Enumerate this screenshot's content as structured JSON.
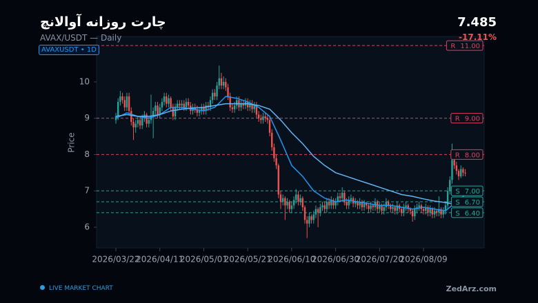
{
  "header": {
    "title": "چارت روزانه آوالانچ",
    "subtitle": "AVAX/USDT — Daily",
    "badge": "AVAXUSDT  •  1D",
    "price": "7.485",
    "change": "-17.11%"
  },
  "footer": {
    "live": "LIVE MARKET CHART",
    "brand": "ZedArz.com"
  },
  "chart_data": {
    "type": "candlestick",
    "y_label": "Price",
    "ylim": [
      5.43,
      11.25
    ],
    "yticks": [
      6,
      7,
      8,
      9,
      10
    ],
    "up_color": "#26a69a",
    "down_color": "#ef5350",
    "xticks": [
      "2026/03/22",
      "2026/04/11",
      "2026/05/01",
      "2026/05/21",
      "2026/06/10",
      "2026/06/30",
      "2026/07/20",
      "2026/08/09"
    ],
    "x": [
      "2026/03/22",
      "2026/03/23",
      "2026/03/24",
      "2026/03/25",
      "2026/03/26",
      "2026/03/27",
      "2026/03/28",
      "2026/03/29",
      "2026/03/30",
      "2026/03/31",
      "2026/04/01",
      "2026/04/02",
      "2026/04/03",
      "2026/04/04",
      "2026/04/05",
      "2026/04/06",
      "2026/04/07",
      "2026/04/08",
      "2026/04/09",
      "2026/04/10",
      "2026/04/11",
      "2026/04/12",
      "2026/04/13",
      "2026/04/14",
      "2026/04/15",
      "2026/04/16",
      "2026/04/17",
      "2026/04/18",
      "2026/04/19",
      "2026/04/20",
      "2026/04/21",
      "2026/04/22",
      "2026/04/23",
      "2026/04/24",
      "2026/04/25",
      "2026/04/26",
      "2026/04/27",
      "2026/04/28",
      "2026/04/29",
      "2026/04/30",
      "2026/05/01",
      "2026/05/02",
      "2026/05/03",
      "2026/05/04",
      "2026/05/05",
      "2026/05/06",
      "2026/05/07",
      "2026/05/08",
      "2026/05/09",
      "2026/05/10",
      "2026/05/11",
      "2026/05/12",
      "2026/05/13",
      "2026/05/14",
      "2026/05/15",
      "2026/05/16",
      "2026/05/17",
      "2026/05/18",
      "2026/05/19",
      "2026/05/20",
      "2026/05/21",
      "2026/05/22",
      "2026/05/23",
      "2026/05/24",
      "2026/05/25",
      "2026/05/26",
      "2026/05/27",
      "2026/05/28",
      "2026/05/29",
      "2026/05/30",
      "2026/05/31",
      "2026/06/01",
      "2026/06/02",
      "2026/06/03",
      "2026/06/04",
      "2026/06/05",
      "2026/06/06",
      "2026/06/07",
      "2026/06/08",
      "2026/06/09",
      "2026/06/10",
      "2026/06/11",
      "2026/06/12",
      "2026/06/13",
      "2026/06/14",
      "2026/06/15",
      "2026/06/16",
      "2026/06/17",
      "2026/06/18",
      "2026/06/19",
      "2026/06/20",
      "2026/06/21",
      "2026/06/22",
      "2026/06/23",
      "2026/06/24",
      "2026/06/25",
      "2026/06/26",
      "2026/06/27",
      "2026/06/28",
      "2026/06/29",
      "2026/06/30",
      "2026/07/01",
      "2026/07/02",
      "2026/07/03",
      "2026/07/04",
      "2026/07/05",
      "2026/07/06",
      "2026/07/07",
      "2026/07/08",
      "2026/07/09",
      "2026/07/10",
      "2026/07/11",
      "2026/07/12",
      "2026/07/13",
      "2026/07/14",
      "2026/07/15",
      "2026/07/16",
      "2026/07/17",
      "2026/07/18",
      "2026/07/19",
      "2026/07/20",
      "2026/07/21",
      "2026/07/22",
      "2026/07/23",
      "2026/07/24",
      "2026/07/25",
      "2026/07/26",
      "2026/07/27",
      "2026/07/28",
      "2026/07/29",
      "2026/07/30",
      "2026/07/31",
      "2026/08/01",
      "2026/08/02",
      "2026/08/03",
      "2026/08/04",
      "2026/08/05",
      "2026/08/06",
      "2026/08/07",
      "2026/08/08",
      "2026/08/09",
      "2026/08/10",
      "2026/08/11",
      "2026/08/12",
      "2026/08/13",
      "2026/08/14",
      "2026/08/15",
      "2026/08/16",
      "2026/08/17",
      "2026/08/18",
      "2026/08/19",
      "2026/08/20",
      "2026/08/21",
      "2026/08/22",
      "2026/08/23",
      "2026/08/24",
      "2026/08/25",
      "2026/08/26",
      "2026/08/27",
      "2026/08/28"
    ],
    "ohlc": [
      [
        8.95,
        9.15,
        8.85,
        9.05
      ],
      [
        9.05,
        9.55,
        8.95,
        9.45
      ],
      [
        9.45,
        9.75,
        9.35,
        9.6
      ],
      [
        9.6,
        9.7,
        9.4,
        9.5
      ],
      [
        9.5,
        9.6,
        9.2,
        9.3
      ],
      [
        9.3,
        9.7,
        9.2,
        9.6
      ],
      [
        9.6,
        9.7,
        9.1,
        9.2
      ],
      [
        9.2,
        9.3,
        8.8,
        8.9
      ],
      [
        8.9,
        9.0,
        8.4,
        8.75
      ],
      [
        8.75,
        8.95,
        8.6,
        8.85
      ],
      [
        8.85,
        9.05,
        8.75,
        8.95
      ],
      [
        8.95,
        9.05,
        8.7,
        8.8
      ],
      [
        8.8,
        9.1,
        8.7,
        9.0
      ],
      [
        9.0,
        9.2,
        8.9,
        9.1
      ],
      [
        9.1,
        9.15,
        8.75,
        8.85
      ],
      [
        8.85,
        9.05,
        8.75,
        8.95
      ],
      [
        8.95,
        9.65,
        8.85,
        9.05
      ],
      [
        9.05,
        9.3,
        8.45,
        9.2
      ],
      [
        9.2,
        9.45,
        9.1,
        9.35
      ],
      [
        9.35,
        9.45,
        9.0,
        9.1
      ],
      [
        9.1,
        9.4,
        9.0,
        9.3
      ],
      [
        9.3,
        9.55,
        9.2,
        9.45
      ],
      [
        9.45,
        9.7,
        9.35,
        9.6
      ],
      [
        9.6,
        9.7,
        9.3,
        9.4
      ],
      [
        9.4,
        9.65,
        9.3,
        9.55
      ],
      [
        9.55,
        9.6,
        9.2,
        9.3
      ],
      [
        9.3,
        9.4,
        8.95,
        9.05
      ],
      [
        9.05,
        9.4,
        8.95,
        9.3
      ],
      [
        9.3,
        9.5,
        9.2,
        9.4
      ],
      [
        9.4,
        9.5,
        9.25,
        9.35
      ],
      [
        9.35,
        9.5,
        9.25,
        9.4
      ],
      [
        9.4,
        9.5,
        9.2,
        9.3
      ],
      [
        9.3,
        9.55,
        9.2,
        9.45
      ],
      [
        9.45,
        9.55,
        9.25,
        9.35
      ],
      [
        9.35,
        9.45,
        9.1,
        9.2
      ],
      [
        9.2,
        9.4,
        9.1,
        9.3
      ],
      [
        9.3,
        9.4,
        9.15,
        9.25
      ],
      [
        9.25,
        9.35,
        9.05,
        9.15
      ],
      [
        9.15,
        9.3,
        9.05,
        9.2
      ],
      [
        9.2,
        9.4,
        9.1,
        9.3
      ],
      [
        9.3,
        9.4,
        9.1,
        9.2
      ],
      [
        9.2,
        9.45,
        9.1,
        9.35
      ],
      [
        9.35,
        9.45,
        9.2,
        9.3
      ],
      [
        9.3,
        9.6,
        9.2,
        9.5
      ],
      [
        9.5,
        9.8,
        9.4,
        9.7
      ],
      [
        9.7,
        9.8,
        9.5,
        9.6
      ],
      [
        9.6,
        10.0,
        9.5,
        9.9
      ],
      [
        9.9,
        10.45,
        9.8,
        10.1
      ],
      [
        10.1,
        10.25,
        9.8,
        9.9
      ],
      [
        9.9,
        10.15,
        9.8,
        10.0
      ],
      [
        10.0,
        10.1,
        9.75,
        9.85
      ],
      [
        9.85,
        9.95,
        9.5,
        9.6
      ],
      [
        9.6,
        9.7,
        9.2,
        9.3
      ],
      [
        9.3,
        9.4,
        9.15,
        9.25
      ],
      [
        9.25,
        9.45,
        9.15,
        9.35
      ],
      [
        9.35,
        9.6,
        9.25,
        9.5
      ],
      [
        9.5,
        9.6,
        9.2,
        9.3
      ],
      [
        9.3,
        9.5,
        9.2,
        9.4
      ],
      [
        9.4,
        9.5,
        9.25,
        9.35
      ],
      [
        9.35,
        9.55,
        9.25,
        9.45
      ],
      [
        9.45,
        9.55,
        9.2,
        9.3
      ],
      [
        9.3,
        9.5,
        9.2,
        9.4
      ],
      [
        9.4,
        9.5,
        9.15,
        9.25
      ],
      [
        9.25,
        9.45,
        9.15,
        9.35
      ],
      [
        9.35,
        9.45,
        9.0,
        9.1
      ],
      [
        9.1,
        9.2,
        8.9,
        9.0
      ],
      [
        9.0,
        9.1,
        8.85,
        8.95
      ],
      [
        8.95,
        9.15,
        8.85,
        9.05
      ],
      [
        9.05,
        9.15,
        8.9,
        9.0
      ],
      [
        9.0,
        9.1,
        8.85,
        8.95
      ],
      [
        8.95,
        9.05,
        8.5,
        8.6
      ],
      [
        8.6,
        8.7,
        8.1,
        8.2
      ],
      [
        8.2,
        8.3,
        7.8,
        7.9
      ],
      [
        7.9,
        8.0,
        7.6,
        7.7
      ],
      [
        7.7,
        7.75,
        6.8,
        6.9
      ],
      [
        6.9,
        7.0,
        6.5,
        6.7
      ],
      [
        6.7,
        6.9,
        6.6,
        6.8
      ],
      [
        6.8,
        6.85,
        6.2,
        6.6
      ],
      [
        6.6,
        6.8,
        6.5,
        6.7
      ],
      [
        6.7,
        6.75,
        6.4,
        6.5
      ],
      [
        6.5,
        6.7,
        6.4,
        6.6
      ],
      [
        6.6,
        6.85,
        6.5,
        6.75
      ],
      [
        6.75,
        7.05,
        6.65,
        6.9
      ],
      [
        6.9,
        7.0,
        6.6,
        6.7
      ],
      [
        6.7,
        6.9,
        6.6,
        6.8
      ],
      [
        6.8,
        6.85,
        6.45,
        6.55
      ],
      [
        6.55,
        6.6,
        6.1,
        6.2
      ],
      [
        6.2,
        6.3,
        5.7,
        6.1
      ],
      [
        6.1,
        6.4,
        6.0,
        6.3
      ],
      [
        6.3,
        6.35,
        6.1,
        6.2
      ],
      [
        6.2,
        6.45,
        6.1,
        6.35
      ],
      [
        6.35,
        6.6,
        6.25,
        6.5
      ],
      [
        6.5,
        6.55,
        6.0,
        6.4
      ],
      [
        6.4,
        6.65,
        6.3,
        6.55
      ],
      [
        6.55,
        6.7,
        6.45,
        6.6
      ],
      [
        6.6,
        6.7,
        6.4,
        6.5
      ],
      [
        6.5,
        6.8,
        6.4,
        6.7
      ],
      [
        6.7,
        6.8,
        6.5,
        6.6
      ],
      [
        6.6,
        6.85,
        6.5,
        6.75
      ],
      [
        6.75,
        6.8,
        6.5,
        6.6
      ],
      [
        6.6,
        6.8,
        6.5,
        6.7
      ],
      [
        6.7,
        6.95,
        6.6,
        6.85
      ],
      [
        6.85,
        6.95,
        6.7,
        6.8
      ],
      [
        6.8,
        7.1,
        6.7,
        6.95
      ],
      [
        6.95,
        7.0,
        6.6,
        6.7
      ],
      [
        6.7,
        6.8,
        6.5,
        6.6
      ],
      [
        6.6,
        6.85,
        6.5,
        6.75
      ],
      [
        6.75,
        6.9,
        6.65,
        6.8
      ],
      [
        6.8,
        6.85,
        6.55,
        6.65
      ],
      [
        6.65,
        6.8,
        6.55,
        6.7
      ],
      [
        6.7,
        6.75,
        6.5,
        6.6
      ],
      [
        6.6,
        6.8,
        6.5,
        6.7
      ],
      [
        6.7,
        6.75,
        6.45,
        6.55
      ],
      [
        6.55,
        6.75,
        6.45,
        6.65
      ],
      [
        6.65,
        6.7,
        6.5,
        6.6
      ],
      [
        6.6,
        6.65,
        6.4,
        6.5
      ],
      [
        6.5,
        6.7,
        6.4,
        6.6
      ],
      [
        6.6,
        6.65,
        6.45,
        6.55
      ],
      [
        6.55,
        6.8,
        6.45,
        6.7
      ],
      [
        6.7,
        6.75,
        6.4,
        6.5
      ],
      [
        6.5,
        6.7,
        6.4,
        6.6
      ],
      [
        6.6,
        6.65,
        6.35,
        6.45
      ],
      [
        6.45,
        6.65,
        6.35,
        6.55
      ],
      [
        6.55,
        6.8,
        6.45,
        6.7
      ],
      [
        6.7,
        6.75,
        6.5,
        6.6
      ],
      [
        6.6,
        6.65,
        6.4,
        6.5
      ],
      [
        6.5,
        6.65,
        6.4,
        6.55
      ],
      [
        6.55,
        6.6,
        6.35,
        6.45
      ],
      [
        6.45,
        6.7,
        6.35,
        6.6
      ],
      [
        6.6,
        6.65,
        6.4,
        6.5
      ],
      [
        6.5,
        6.55,
        6.3,
        6.4
      ],
      [
        6.4,
        6.65,
        6.3,
        6.55
      ],
      [
        6.55,
        6.7,
        6.45,
        6.6
      ],
      [
        6.6,
        6.65,
        6.4,
        6.5
      ],
      [
        6.5,
        6.55,
        6.35,
        6.45
      ],
      [
        6.45,
        6.5,
        6.15,
        6.3
      ],
      [
        6.3,
        6.6,
        6.2,
        6.5
      ],
      [
        6.5,
        6.65,
        6.4,
        6.55
      ],
      [
        6.55,
        6.7,
        6.45,
        6.6
      ],
      [
        6.6,
        6.65,
        6.4,
        6.5
      ],
      [
        6.5,
        6.55,
        6.35,
        6.45
      ],
      [
        6.45,
        6.65,
        6.35,
        6.55
      ],
      [
        6.55,
        6.6,
        6.3,
        6.4
      ],
      [
        6.4,
        6.6,
        6.3,
        6.5
      ],
      [
        6.5,
        6.55,
        6.25,
        6.35
      ],
      [
        6.35,
        6.55,
        6.25,
        6.45
      ],
      [
        6.45,
        6.5,
        6.3,
        6.4
      ],
      [
        6.4,
        6.85,
        6.3,
        6.5
      ],
      [
        6.5,
        6.55,
        6.25,
        6.35
      ],
      [
        6.35,
        6.55,
        6.25,
        6.45
      ],
      [
        6.45,
        6.7,
        6.35,
        6.6
      ],
      [
        6.6,
        7.1,
        6.5,
        7.0
      ],
      [
        7.0,
        7.4,
        6.9,
        7.3
      ],
      [
        7.3,
        8.3,
        7.2,
        7.85
      ],
      [
        7.85,
        7.95,
        7.6,
        7.7
      ],
      [
        7.7,
        7.8,
        7.45,
        7.55
      ],
      [
        7.55,
        7.6,
        7.3,
        7.4
      ],
      [
        7.4,
        7.7,
        7.35,
        7.6
      ],
      [
        7.6,
        7.65,
        7.4,
        7.5
      ],
      [
        7.5,
        7.6,
        7.4,
        7.49
      ]
    ],
    "series": [
      {
        "color": "#2196f3",
        "x": [
          "2026/03/22",
          "2026/03/27",
          "2026/04/01",
          "2026/04/06",
          "2026/04/11",
          "2026/04/16",
          "2026/04/21",
          "2026/04/26",
          "2026/05/01",
          "2026/05/06",
          "2026/05/11",
          "2026/05/16",
          "2026/05/21",
          "2026/05/26",
          "2026/05/31",
          "2026/06/05",
          "2026/06/10",
          "2026/06/15",
          "2026/06/20",
          "2026/06/25",
          "2026/06/30",
          "2026/07/05",
          "2026/07/10",
          "2026/07/15",
          "2026/07/20",
          "2026/07/25",
          "2026/07/30",
          "2026/08/04",
          "2026/08/09",
          "2026/08/14",
          "2026/08/19",
          "2026/08/24",
          "2026/08/28"
        ],
        "values": [
          9.0,
          9.15,
          9.05,
          9.0,
          9.1,
          9.3,
          9.3,
          9.25,
          9.2,
          9.3,
          9.6,
          9.55,
          9.45,
          9.3,
          9.05,
          8.4,
          7.7,
          7.4,
          7.0,
          6.8,
          6.7,
          6.75,
          6.7,
          6.65,
          6.6,
          6.6,
          6.55,
          6.5,
          6.55,
          6.5,
          6.45,
          6.7,
          6.9
        ]
      },
      {
        "color": "#64b5f6",
        "x": [
          "2026/03/22",
          "2026/03/27",
          "2026/04/01",
          "2026/04/06",
          "2026/04/11",
          "2026/04/16",
          "2026/04/21",
          "2026/04/26",
          "2026/05/01",
          "2026/05/06",
          "2026/05/11",
          "2026/05/16",
          "2026/05/21",
          "2026/05/26",
          "2026/05/31",
          "2026/06/05",
          "2026/06/10",
          "2026/06/15",
          "2026/06/20",
          "2026/06/25",
          "2026/06/30",
          "2026/07/05",
          "2026/07/10",
          "2026/07/15",
          "2026/07/20",
          "2026/07/25",
          "2026/07/30",
          "2026/08/04",
          "2026/08/09",
          "2026/08/14",
          "2026/08/19",
          "2026/08/24",
          "2026/08/28"
        ],
        "values": [
          9.05,
          9.1,
          9.05,
          9.05,
          9.1,
          9.2,
          9.25,
          9.28,
          9.3,
          9.35,
          9.4,
          9.4,
          9.4,
          9.35,
          9.25,
          8.95,
          8.6,
          8.3,
          7.95,
          7.7,
          7.5,
          7.4,
          7.3,
          7.2,
          7.1,
          7.0,
          6.9,
          6.85,
          6.78,
          6.72,
          6.68,
          6.62,
          6.72
        ]
      }
    ],
    "levels": [
      {
        "tag": "R",
        "value": 11,
        "label": "11.00",
        "color": "#e0405a"
      },
      {
        "tag": "R",
        "value": 9,
        "label": "9.00",
        "color": "#e0405a"
      },
      {
        "tag": "R",
        "value": 8,
        "label": "8.00",
        "color": "#e0405a"
      },
      {
        "tag": "S",
        "value": 7,
        "label": "7.00",
        "color": "#26a69a"
      },
      {
        "tag": "S",
        "value": 6.7,
        "label": "6.70",
        "color": "#26a69a"
      },
      {
        "tag": "S",
        "value": 6.4,
        "label": "6.40",
        "color": "#26a69a"
      }
    ]
  }
}
